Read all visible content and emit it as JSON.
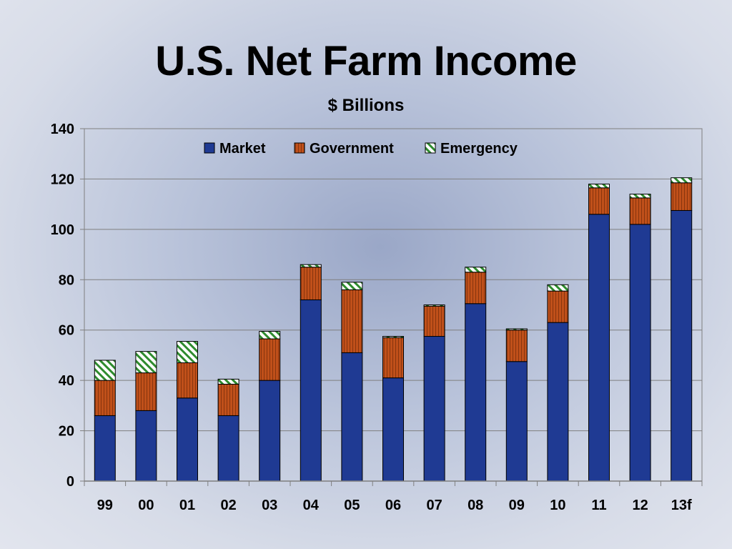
{
  "chart_data": {
    "type": "bar",
    "stacked": true,
    "title": "U.S. Net Farm Income",
    "subtitle": "$ Billions",
    "categories": [
      "99",
      "00",
      "01",
      "02",
      "03",
      "04",
      "05",
      "06",
      "07",
      "08",
      "09",
      "10",
      "11",
      "12",
      "13f"
    ],
    "series": [
      {
        "name": "Market",
        "color": "#1f3a93",
        "values": [
          26,
          28,
          33,
          26,
          40,
          72,
          51,
          41,
          57.5,
          70.5,
          47.5,
          63,
          106,
          102,
          107.5
        ]
      },
      {
        "name": "Government",
        "color": "#c0501a",
        "values": [
          14,
          15,
          14,
          12.5,
          16.5,
          13,
          25,
          16,
          12,
          12.5,
          12.5,
          12.5,
          10.5,
          10.5,
          11
        ]
      },
      {
        "name": "Emergency",
        "color": "#2e8b2e",
        "values": [
          8,
          8.5,
          8.5,
          2,
          3,
          1,
          3,
          0.5,
          0.5,
          2,
          0.5,
          2.5,
          1.5,
          1.5,
          2
        ]
      }
    ],
    "yticks": [
      0,
      20,
      40,
      60,
      80,
      100,
      120,
      140
    ],
    "ylim": [
      0,
      140
    ],
    "grid": true,
    "legend_position": "top-center"
  }
}
